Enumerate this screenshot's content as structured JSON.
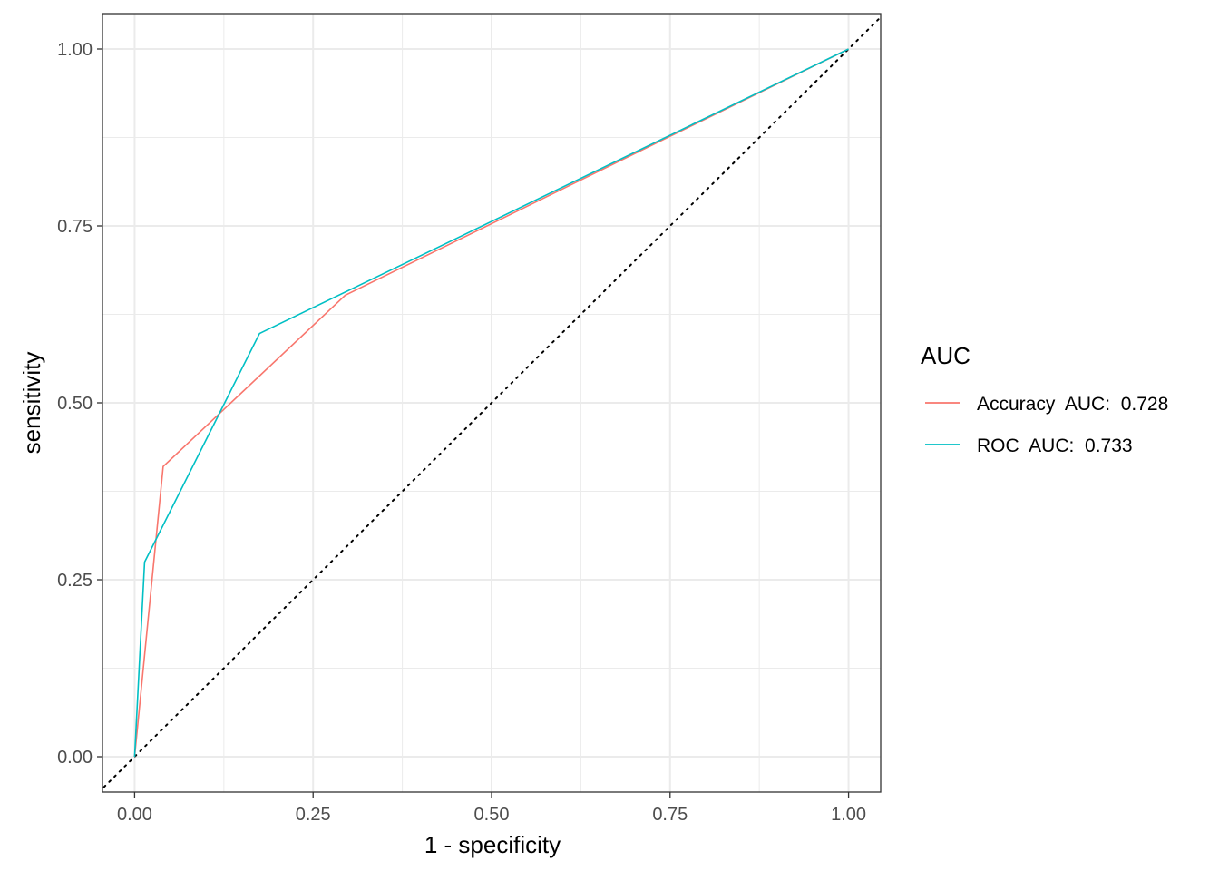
{
  "chart_data": {
    "type": "line",
    "xlabel": "1 - specificity",
    "ylabel": "sensitivity",
    "xlim": [
      -0.045,
      1.045
    ],
    "ylim": [
      -0.05,
      1.05
    ],
    "x_ticks": [
      0,
      0.25,
      0.5,
      0.75,
      1
    ],
    "y_ticks": [
      0,
      0.25,
      0.5,
      0.75,
      1
    ],
    "x_tick_labels": [
      "0.00",
      "0.25",
      "0.50",
      "0.75",
      "1.00"
    ],
    "y_tick_labels": [
      "0.00",
      "0.25",
      "0.50",
      "0.75",
      "1.00"
    ],
    "grid": true,
    "legend": {
      "title": "AUC",
      "position": "right",
      "entries": [
        "Accuracy  AUC:  0.728",
        "ROC  AUC:  0.733"
      ]
    },
    "series": [
      {
        "name": "Accuracy  AUC:  0.728",
        "color": "#F8766D",
        "x": [
          0.0,
          0.04,
          0.295,
          1.0
        ],
        "y": [
          0.0,
          0.41,
          0.652,
          1.0
        ]
      },
      {
        "name": "ROC  AUC:  0.733",
        "color": "#00BFC4",
        "x": [
          0.0,
          0.014,
          0.175,
          1.0
        ],
        "y": [
          0.0,
          0.275,
          0.598,
          1.0
        ]
      }
    ],
    "reference_line": {
      "x": [
        -0.05,
        1.05
      ],
      "y": [
        -0.05,
        1.05
      ],
      "style": "dotted",
      "color": "#000000"
    }
  }
}
